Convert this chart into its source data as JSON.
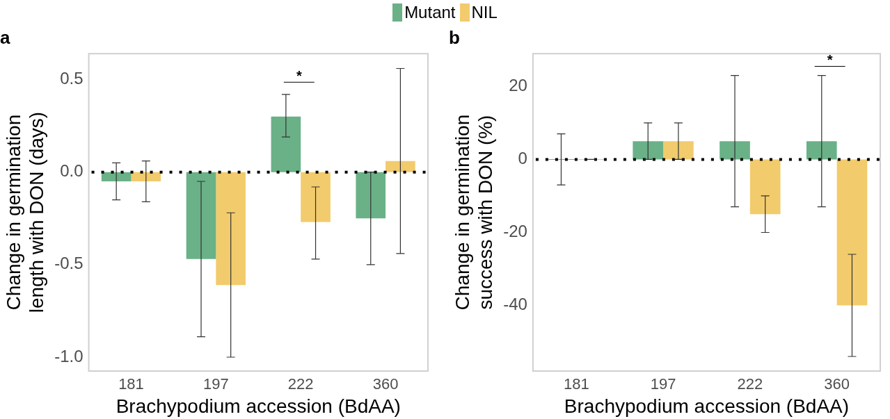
{
  "chart_data": [
    {
      "type": "bar",
      "title": "a",
      "xlabel": "Brachypodium accession (BdAA)",
      "ylabel": "Change in germination\nlength with DON (days)",
      "categories": [
        "181",
        "197",
        "222",
        "360"
      ],
      "series": [
        {
          "name": "Mutant",
          "color": "#6ab187",
          "values": [
            -0.05,
            -0.47,
            0.3,
            -0.25
          ],
          "errors": [
            [
              -0.15,
              0.05
            ],
            [
              -0.89,
              -0.05
            ],
            [
              0.19,
              0.42
            ],
            [
              -0.5,
              0
            ]
          ]
        },
        {
          "name": "NIL",
          "color": "#f2cb6c",
          "values": [
            -0.05,
            -0.61,
            -0.27,
            0.06
          ],
          "errors": [
            [
              -0.16,
              0.06
            ],
            [
              -1.0,
              -0.22
            ],
            [
              -0.47,
              -0.08
            ],
            [
              -0.44,
              0.56
            ]
          ]
        }
      ],
      "ylim": [
        -1.075,
        0.64
      ],
      "yticks": [
        {
          "value": 0.5,
          "label": "0.5"
        },
        {
          "value": 0,
          "label": "0.0"
        },
        {
          "value": -0.5,
          "label": "-0.5"
        },
        {
          "value": -1,
          "label": "-1.0"
        }
      ],
      "ref_lines": [
        {
          "axis": "y",
          "value": 0,
          "color": "#000000",
          "line_style": "dotted"
        }
      ],
      "annotations": [
        "*"
      ],
      "legend": "top",
      "grid": false
    },
    {
      "type": "bar",
      "title": "b",
      "xlabel": "Brachypodium accession (BdAA)",
      "ylabel": "Change in germination\nsuccess with DON (%)",
      "categories": [
        "181",
        "197",
        "222",
        "360"
      ],
      "series": [
        {
          "color": "#6ab187",
          "values": [
            0,
            5,
            5,
            5
          ],
          "errors": [
            7,
            [
              0,
              10
            ],
            [
              -13,
              23
            ],
            [
              -13,
              23
            ]
          ]
        },
        {
          "color": "#f2cb6c",
          "values": [
            0,
            5,
            -15,
            -40
          ],
          "errors": [
            0,
            [
              0,
              10
            ],
            [
              -20,
              -10
            ],
            [
              -54,
              -26
            ]
          ]
        }
      ],
      "ylim": [
        -58,
        29
      ],
      "yticks": [
        20,
        0,
        -20,
        -40
      ],
      "ref_lines": [
        {
          "axis": "y",
          "value": 0,
          "color": "#000000",
          "line_style": "dotted"
        }
      ],
      "annotations": [
        "*"
      ],
      "grid": false
    }
  ]
}
